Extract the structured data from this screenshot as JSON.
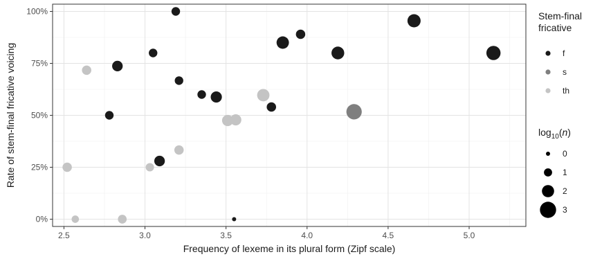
{
  "chart_data": {
    "type": "scatter",
    "xlabel": "Frequency of lexeme in its plural form (Zipf scale)",
    "ylabel": "Rate of stem-final fricative voicing",
    "xlim": [
      2.43,
      5.35
    ],
    "ylim": [
      -0.035,
      1.035
    ],
    "x_ticks": [
      {
        "value": 2.5,
        "label": "2.5"
      },
      {
        "value": 3.0,
        "label": "3.0"
      },
      {
        "value": 3.5,
        "label": "3.5"
      },
      {
        "value": 4.0,
        "label": "4.0"
      },
      {
        "value": 4.5,
        "label": "4.5"
      },
      {
        "value": 5.0,
        "label": "5.0"
      }
    ],
    "y_ticks": [
      {
        "value": 0,
        "label": "0%"
      },
      {
        "value": 0.25,
        "label": "25%"
      },
      {
        "value": 0.5,
        "label": "50%"
      },
      {
        "value": 0.75,
        "label": "75%"
      },
      {
        "value": 1.0,
        "label": "100%"
      }
    ],
    "grid": true,
    "legend_placement": "right",
    "color_legend": {
      "title_lines": [
        "Stem-final",
        "fricative"
      ],
      "entries": [
        {
          "label": "f",
          "color": "#1a1a1a"
        },
        {
          "label": "s",
          "color": "#7f7f7f"
        },
        {
          "label": "th",
          "color": "#c4c4c4"
        }
      ]
    },
    "size_legend": {
      "title_prefix": "log",
      "title_sub": "10",
      "title_arg": "n",
      "entries": [
        {
          "label": "0",
          "value": 0
        },
        {
          "label": "1",
          "value": 1
        },
        {
          "label": "2",
          "value": 2
        },
        {
          "label": "3",
          "value": 3
        }
      ]
    },
    "series": [
      {
        "name": "f",
        "color": "#1a1a1a",
        "points": [
          {
            "x": 3.19,
            "y": 1.0,
            "log10n": 1.1
          },
          {
            "x": 3.05,
            "y": 0.8,
            "log10n": 1.1
          },
          {
            "x": 2.83,
            "y": 0.737,
            "log10n": 1.6
          },
          {
            "x": 3.21,
            "y": 0.667,
            "log10n": 1.1
          },
          {
            "x": 3.35,
            "y": 0.6,
            "log10n": 1.1
          },
          {
            "x": 3.44,
            "y": 0.588,
            "log10n": 1.75
          },
          {
            "x": 2.78,
            "y": 0.5,
            "log10n": 1.1
          },
          {
            "x": 3.09,
            "y": 0.28,
            "log10n": 1.6
          },
          {
            "x": 3.55,
            "y": 0.0,
            "log10n": 0.0
          },
          {
            "x": 3.85,
            "y": 0.85,
            "log10n": 2.05
          },
          {
            "x": 3.96,
            "y": 0.89,
            "log10n": 1.3
          },
          {
            "x": 3.78,
            "y": 0.54,
            "log10n": 1.3
          },
          {
            "x": 4.19,
            "y": 0.8,
            "log10n": 2.15
          },
          {
            "x": 4.66,
            "y": 0.955,
            "log10n": 2.25
          },
          {
            "x": 5.15,
            "y": 0.8,
            "log10n": 2.5
          }
        ]
      },
      {
        "name": "s",
        "color": "#7f7f7f",
        "points": [
          {
            "x": 4.29,
            "y": 0.517,
            "log10n": 2.8
          }
        ]
      },
      {
        "name": "th",
        "color": "#c4c4c4",
        "points": [
          {
            "x": 2.64,
            "y": 0.717,
            "log10n": 1.3
          },
          {
            "x": 2.52,
            "y": 0.25,
            "log10n": 1.3
          },
          {
            "x": 2.57,
            "y": 0.0,
            "log10n": 0.8
          },
          {
            "x": 2.86,
            "y": 0.0,
            "log10n": 1.15
          },
          {
            "x": 3.03,
            "y": 0.25,
            "log10n": 1.05
          },
          {
            "x": 3.21,
            "y": 0.333,
            "log10n": 1.3
          },
          {
            "x": 3.51,
            "y": 0.475,
            "log10n": 1.75
          },
          {
            "x": 3.56,
            "y": 0.478,
            "log10n": 1.75
          },
          {
            "x": 3.73,
            "y": 0.597,
            "log10n": 2.05
          }
        ]
      }
    ]
  }
}
